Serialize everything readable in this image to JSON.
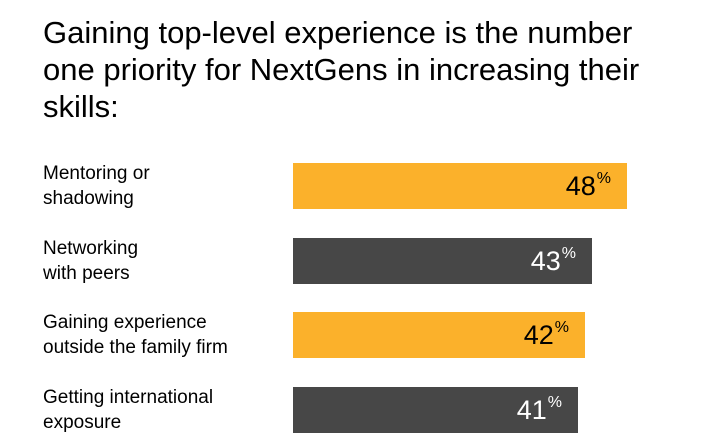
{
  "title": "Gaining top-level experience is the number one priority for NextGens in increasing their skills:",
  "colors": {
    "orange": "#fbb12b",
    "dark": "#474747",
    "text_on_orange": "#000000",
    "text_on_dark": "#ffffff"
  },
  "chart_data": {
    "type": "bar",
    "orientation": "horizontal",
    "title": "Gaining top-level experience is the number one priority for NextGens in increasing their skills:",
    "unit": "%",
    "categories": [
      "Mentoring or\nshadowing",
      "Networking\nwith peers",
      "Gaining experience\noutside the family firm",
      "Getting international\nexposure"
    ],
    "values": [
      48,
      43,
      42,
      41
    ],
    "bar_colors": [
      "#fbb12b",
      "#474747",
      "#fbb12b",
      "#474747"
    ],
    "xlim": [
      0,
      48
    ],
    "grid": false,
    "legend": "none"
  }
}
